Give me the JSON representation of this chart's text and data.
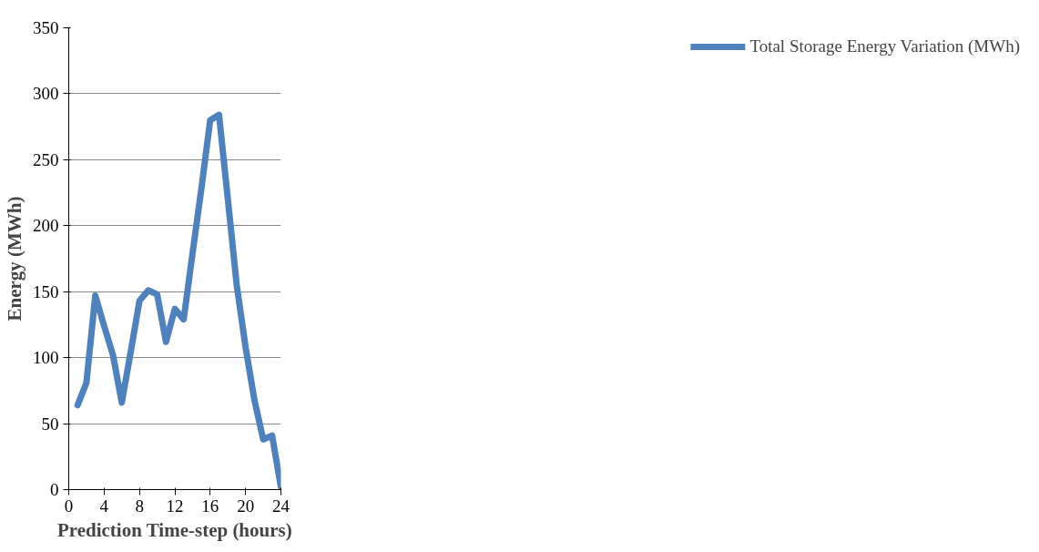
{
  "chart_data": {
    "type": "line",
    "xlabel": "Prediction Time-step (hours)",
    "ylabel": "Energy (MWh)",
    "x": [
      1,
      2,
      3,
      4,
      5,
      6,
      7,
      8,
      9,
      10,
      11,
      12,
      13,
      14,
      15,
      16,
      17,
      18,
      19,
      20,
      21,
      22,
      23,
      24
    ],
    "series": [
      {
        "name": "Total Storage Energy Variation (MWh)",
        "color": "#4f81bd",
        "values": [
          64,
          81,
          147,
          124,
          102,
          66,
          104,
          143,
          151,
          148,
          112,
          137,
          129,
          179,
          228,
          280,
          284,
          220,
          155,
          108,
          68,
          38,
          41,
          2
        ]
      }
    ],
    "xlim": [
      0,
      24
    ],
    "xticks": [
      0,
      4,
      8,
      12,
      16,
      20,
      24
    ],
    "ylim": [
      0,
      350
    ],
    "yticks": [
      0,
      50,
      100,
      150,
      200,
      250,
      300,
      350
    ],
    "grid": "y",
    "legend": "right",
    "marker": "none",
    "line_style": "solid"
  }
}
